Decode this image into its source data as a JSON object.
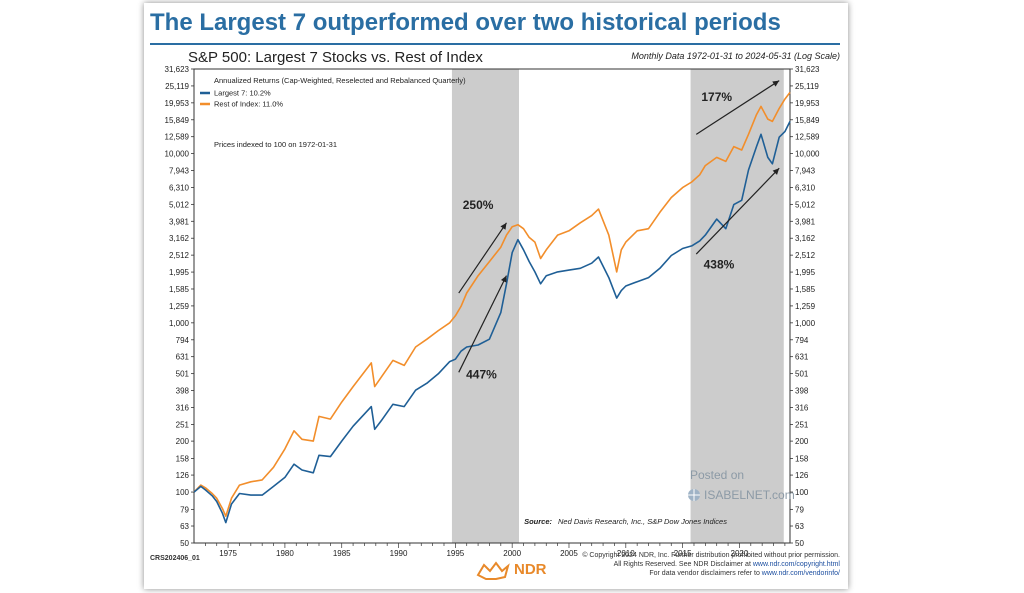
{
  "header": {
    "title": "The Largest 7 outperformed over two historical periods",
    "subtitle": "S&P 500: Largest 7 Stocks vs. Rest of Index",
    "date_range": "Monthly Data 1972-01-31 to 2024-05-31 (Log Scale)"
  },
  "legend": {
    "heading": "Annualized Returns (Cap-Weighted, Reselected and Rebalanced Quarterly)",
    "largest": "Largest 7: 10.2%",
    "rest": "Rest of Index: 11.0%",
    "note": "Prices indexed to 100 on 1972-01-31"
  },
  "source": {
    "label": "Source:",
    "text": "Ned Davis Research, Inc., S&P Dow Jones Indices"
  },
  "watermark": {
    "line1": "Posted on",
    "line2": "ISABELNET.com"
  },
  "footer": {
    "code": "CRS202406_01",
    "copyright1": "© Copyright 2024 NDR, Inc. Further distribution prohibited without prior permission.",
    "copyright2_pre": "All Rights Reserved. See NDR Disclaimer at ",
    "copyright2_link": "www.ndr.com/copyright.html",
    "copyright3_pre": "For data vendor disclaimers refer to ",
    "copyright3_link": "www.ndr.com/vendorinfo/",
    "logo": "NDR"
  },
  "colors": {
    "largest": "#1f5f96",
    "rest": "#f28e2b",
    "shade": "#cccccc",
    "title": "#2a6ea3"
  },
  "chart_data": {
    "type": "line",
    "scale": "log",
    "y_ticks": [
      "31,623",
      "25,119",
      "19,953",
      "15,849",
      "12,589",
      "10,000",
      "7,943",
      "6,310",
      "5,012",
      "3,981",
      "3,162",
      "2,512",
      "1,995",
      "1,585",
      "1,259",
      "1,000",
      "794",
      "631",
      "501",
      "398",
      "316",
      "251",
      "200",
      "158",
      "126",
      "100",
      "79",
      "63",
      "50"
    ],
    "y_tick_values": [
      31623,
      25119,
      19953,
      15849,
      12589,
      10000,
      7943,
      6310,
      5012,
      3981,
      3162,
      2512,
      1995,
      1585,
      1259,
      1000,
      794,
      631,
      501,
      398,
      316,
      251,
      200,
      158,
      126,
      100,
      79,
      63,
      50
    ],
    "ylim": [
      50,
      31623
    ],
    "xlim": [
      1972,
      2024.45
    ],
    "x_ticks": [
      1975,
      1980,
      1985,
      1990,
      1995,
      2000,
      2005,
      2010,
      2015,
      2020
    ],
    "x_tick_labels": [
      "1975",
      "1980",
      "1985",
      "1990",
      "1995",
      "2000",
      "2005",
      "2010",
      "2015",
      "2020"
    ],
    "shaded_periods": [
      [
        1994.7,
        2000.6
      ],
      [
        2015.7,
        2023.9
      ]
    ],
    "series": [
      {
        "name": "Largest 7",
        "color": "#1f5f96",
        "points": [
          [
            1972,
            100
          ],
          [
            1972.6,
            108
          ],
          [
            1973,
            103
          ],
          [
            1973.6,
            95
          ],
          [
            1974,
            88
          ],
          [
            1974.5,
            75
          ],
          [
            1974.8,
            66
          ],
          [
            1975.3,
            85
          ],
          [
            1976,
            98
          ],
          [
            1977,
            96
          ],
          [
            1978,
            96
          ],
          [
            1979,
            108
          ],
          [
            1980,
            122
          ],
          [
            1980.8,
            146
          ],
          [
            1981.5,
            135
          ],
          [
            1982.5,
            130
          ],
          [
            1983,
            165
          ],
          [
            1984,
            162
          ],
          [
            1985,
            200
          ],
          [
            1986,
            245
          ],
          [
            1987.6,
            320
          ],
          [
            1987.9,
            235
          ],
          [
            1988.5,
            265
          ],
          [
            1989.5,
            330
          ],
          [
            1990.5,
            320
          ],
          [
            1991.5,
            400
          ],
          [
            1992.5,
            440
          ],
          [
            1993.5,
            500
          ],
          [
            1994.5,
            590
          ],
          [
            1995,
            610
          ],
          [
            1995.5,
            680
          ],
          [
            1996,
            720
          ],
          [
            1997,
            740
          ],
          [
            1998,
            800
          ],
          [
            1999,
            1150
          ],
          [
            1999.5,
            1700
          ],
          [
            2000,
            2600
          ],
          [
            2000.5,
            3100
          ],
          [
            2001,
            2700
          ],
          [
            2001.5,
            2300
          ],
          [
            2002,
            2000
          ],
          [
            2002.5,
            1700
          ],
          [
            2003,
            1900
          ],
          [
            2004,
            2000
          ],
          [
            2005,
            2050
          ],
          [
            2006,
            2100
          ],
          [
            2007,
            2250
          ],
          [
            2007.6,
            2450
          ],
          [
            2008.5,
            1850
          ],
          [
            2009.2,
            1400
          ],
          [
            2009.6,
            1550
          ],
          [
            2010,
            1650
          ],
          [
            2011,
            1750
          ],
          [
            2012,
            1850
          ],
          [
            2013,
            2100
          ],
          [
            2014,
            2500
          ],
          [
            2015,
            2750
          ],
          [
            2015.8,
            2850
          ],
          [
            2016.5,
            3050
          ],
          [
            2017,
            3300
          ],
          [
            2018,
            4100
          ],
          [
            2018.8,
            3600
          ],
          [
            2019.5,
            5000
          ],
          [
            2020.2,
            5300
          ],
          [
            2020.8,
            8000
          ],
          [
            2021.5,
            11000
          ],
          [
            2021.9,
            13000
          ],
          [
            2022.5,
            9500
          ],
          [
            2022.9,
            8700
          ],
          [
            2023.5,
            12500
          ],
          [
            2024,
            13500
          ],
          [
            2024.45,
            15500
          ]
        ]
      },
      {
        "name": "Rest of Index",
        "color": "#f28e2b",
        "points": [
          [
            1972,
            100
          ],
          [
            1972.6,
            110
          ],
          [
            1973,
            106
          ],
          [
            1973.6,
            98
          ],
          [
            1974,
            92
          ],
          [
            1974.5,
            80
          ],
          [
            1974.8,
            72
          ],
          [
            1975.3,
            92
          ],
          [
            1976,
            110
          ],
          [
            1977,
            115
          ],
          [
            1978,
            118
          ],
          [
            1979,
            140
          ],
          [
            1980,
            180
          ],
          [
            1980.8,
            230
          ],
          [
            1981.5,
            205
          ],
          [
            1982.5,
            200
          ],
          [
            1983,
            280
          ],
          [
            1984,
            270
          ],
          [
            1985,
            340
          ],
          [
            1986,
            420
          ],
          [
            1987.6,
            580
          ],
          [
            1987.9,
            420
          ],
          [
            1988.5,
            480
          ],
          [
            1989.5,
            600
          ],
          [
            1990.5,
            560
          ],
          [
            1991.5,
            720
          ],
          [
            1992.5,
            800
          ],
          [
            1993.5,
            900
          ],
          [
            1994.5,
            1000
          ],
          [
            1995,
            1100
          ],
          [
            1995.5,
            1250
          ],
          [
            1996,
            1500
          ],
          [
            1997,
            1900
          ],
          [
            1998,
            2300
          ],
          [
            1999,
            2800
          ],
          [
            1999.5,
            3300
          ],
          [
            2000,
            3700
          ],
          [
            2000.5,
            3800
          ],
          [
            2001,
            3600
          ],
          [
            2001.5,
            3200
          ],
          [
            2002,
            3000
          ],
          [
            2002.5,
            2400
          ],
          [
            2003,
            2700
          ],
          [
            2004,
            3300
          ],
          [
            2005,
            3500
          ],
          [
            2006,
            3900
          ],
          [
            2007,
            4300
          ],
          [
            2007.6,
            4700
          ],
          [
            2008.5,
            3300
          ],
          [
            2009.2,
            2000
          ],
          [
            2009.6,
            2700
          ],
          [
            2010,
            3000
          ],
          [
            2011,
            3500
          ],
          [
            2012,
            3600
          ],
          [
            2013,
            4500
          ],
          [
            2014,
            5500
          ],
          [
            2015,
            6300
          ],
          [
            2015.8,
            6800
          ],
          [
            2016.5,
            7500
          ],
          [
            2017,
            8500
          ],
          [
            2018,
            9500
          ],
          [
            2018.8,
            9000
          ],
          [
            2019.5,
            11000
          ],
          [
            2020.2,
            10500
          ],
          [
            2020.8,
            13000
          ],
          [
            2021.5,
            17000
          ],
          [
            2021.9,
            19000
          ],
          [
            2022.5,
            16000
          ],
          [
            2022.9,
            15500
          ],
          [
            2023.5,
            18500
          ],
          [
            2024,
            21000
          ],
          [
            2024.45,
            23000
          ]
        ]
      }
    ],
    "annotations": [
      {
        "text": "250%",
        "x": 1997.0,
        "y": 4700
      },
      {
        "text": "447%",
        "x": 1997.3,
        "y": 470
      },
      {
        "text": "177%",
        "x": 2018.0,
        "y": 20500
      },
      {
        "text": "438%",
        "x": 2018.2,
        "y": 2100
      }
    ],
    "arrows": [
      {
        "from": [
          1995.3,
          1500
        ],
        "to": [
          1999.5,
          3900
        ]
      },
      {
        "from": [
          1995.3,
          510
        ],
        "to": [
          1999.5,
          1900
        ]
      },
      {
        "from": [
          2016.2,
          13000
        ],
        "to": [
          2023.5,
          27000
        ]
      },
      {
        "from": [
          2016.2,
          2550
        ],
        "to": [
          2023.5,
          8200
        ]
      }
    ]
  }
}
